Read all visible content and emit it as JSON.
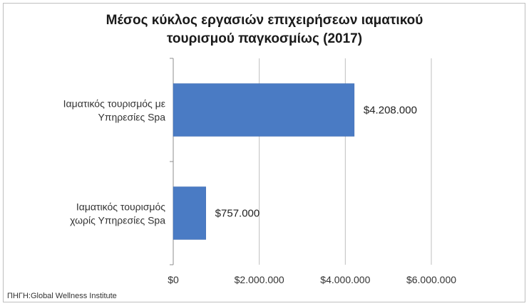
{
  "chart_data": {
    "type": "bar",
    "orientation": "horizontal",
    "title": "Μέσος κύκλος εργασιών επιχειρήσεων ιαματικού τουρισμού παγκοσμίως (2017)",
    "title_lines": [
      "Μέσος κύκλος εργασιών επιχειρήσεων ιαματικού",
      "τουρισμού παγκοσμίως (2017)"
    ],
    "categories": [
      "Ιαματικός τουρισμός με Υπηρεσίες Spa",
      "Ιαματικός τουρισμός χωρίς Υπηρεσίες Spa"
    ],
    "category_lines": [
      [
        "Ιαματικός τουρισμός με",
        "Υπηρεσίες Spa"
      ],
      [
        "Ιαματικός τουρισμός",
        "χωρίς Υπηρεσίες Spa"
      ]
    ],
    "values": [
      4208000,
      757000
    ],
    "data_labels": [
      "$4.208.000",
      "$757.000"
    ],
    "xlim": [
      0,
      6000000
    ],
    "ticks": [
      0,
      2000000,
      4000000,
      6000000
    ],
    "tick_labels": [
      "$0",
      "$2.000.000",
      "$4.000.000",
      "$6.000.000"
    ],
    "grid": true,
    "legend": "none",
    "bar_color": "#4a7bc4",
    "grid_color": "#bfbfbf",
    "source": "ΠΗΓΗ:Global Wellness Institute"
  }
}
